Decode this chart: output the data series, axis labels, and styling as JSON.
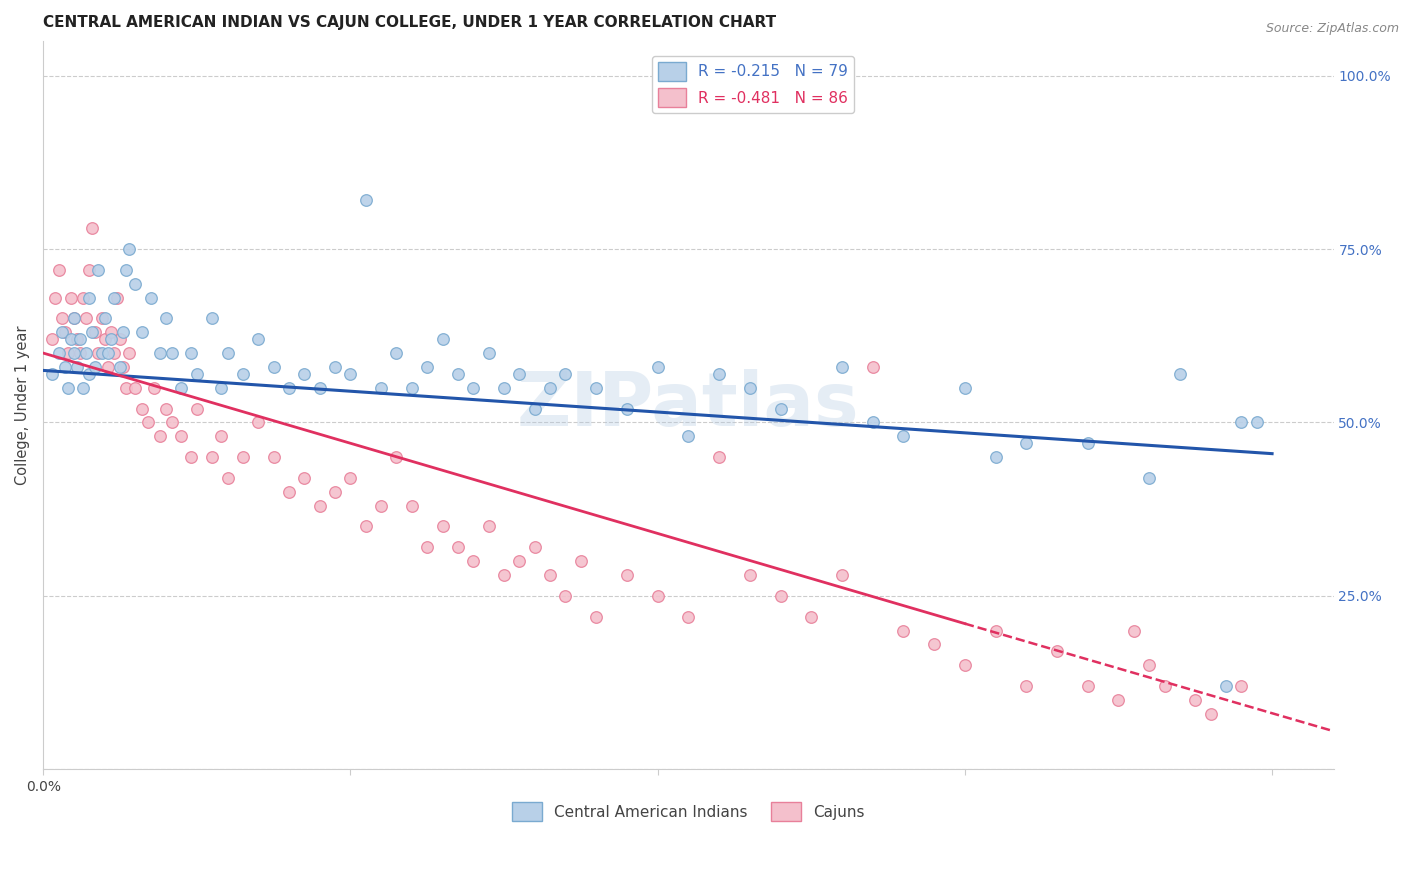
{
  "title": "CENTRAL AMERICAN INDIAN VS CAJUN COLLEGE, UNDER 1 YEAR CORRELATION CHART",
  "source": "Source: ZipAtlas.com",
  "ylabel": "College, Under 1 year",
  "xlim": [
    0.0,
    0.42
  ],
  "ylim": [
    0.0,
    1.05
  ],
  "yticks": [
    0.0,
    0.25,
    0.5,
    0.75,
    1.0
  ],
  "right_yticklabels": [
    "",
    "25.0%",
    "50.0%",
    "75.0%",
    "100.0%"
  ],
  "xtick_vals": [
    0.0,
    0.1,
    0.2,
    0.3,
    0.4
  ],
  "xticklabels_show": {
    "0.0": "0.0%"
  },
  "legend_entries": [
    {
      "label": "R = -0.215   N = 79",
      "facecolor": "#b8d0e8",
      "edgecolor": "#7aaad0"
    },
    {
      "label": "R = -0.481   N = 86",
      "facecolor": "#f4c0cc",
      "edgecolor": "#e8809a"
    }
  ],
  "legend_labels": [
    "Central American Indians",
    "Cajuns"
  ],
  "scatter_blue": {
    "facecolor": "#b8d0e8",
    "edgecolor": "#7aaad0",
    "x": [
      0.003,
      0.005,
      0.006,
      0.007,
      0.008,
      0.009,
      0.01,
      0.01,
      0.011,
      0.012,
      0.013,
      0.014,
      0.015,
      0.015,
      0.016,
      0.017,
      0.018,
      0.019,
      0.02,
      0.021,
      0.022,
      0.023,
      0.025,
      0.026,
      0.027,
      0.028,
      0.03,
      0.032,
      0.035,
      0.038,
      0.04,
      0.042,
      0.045,
      0.048,
      0.05,
      0.055,
      0.058,
      0.06,
      0.065,
      0.07,
      0.075,
      0.08,
      0.085,
      0.09,
      0.095,
      0.1,
      0.105,
      0.11,
      0.115,
      0.12,
      0.125,
      0.13,
      0.135,
      0.14,
      0.145,
      0.15,
      0.155,
      0.16,
      0.165,
      0.17,
      0.18,
      0.19,
      0.2,
      0.21,
      0.22,
      0.23,
      0.24,
      0.26,
      0.27,
      0.28,
      0.3,
      0.31,
      0.32,
      0.34,
      0.36,
      0.37,
      0.385,
      0.39,
      0.395
    ],
    "y": [
      0.57,
      0.6,
      0.63,
      0.58,
      0.55,
      0.62,
      0.6,
      0.65,
      0.58,
      0.62,
      0.55,
      0.6,
      0.68,
      0.57,
      0.63,
      0.58,
      0.72,
      0.6,
      0.65,
      0.6,
      0.62,
      0.68,
      0.58,
      0.63,
      0.72,
      0.75,
      0.7,
      0.63,
      0.68,
      0.6,
      0.65,
      0.6,
      0.55,
      0.6,
      0.57,
      0.65,
      0.55,
      0.6,
      0.57,
      0.62,
      0.58,
      0.55,
      0.57,
      0.55,
      0.58,
      0.57,
      0.82,
      0.55,
      0.6,
      0.55,
      0.58,
      0.62,
      0.57,
      0.55,
      0.6,
      0.55,
      0.57,
      0.52,
      0.55,
      0.57,
      0.55,
      0.52,
      0.58,
      0.48,
      0.57,
      0.55,
      0.52,
      0.58,
      0.5,
      0.48,
      0.55,
      0.45,
      0.47,
      0.47,
      0.42,
      0.57,
      0.12,
      0.5,
      0.5
    ]
  },
  "scatter_pink": {
    "facecolor": "#f4c0cc",
    "edgecolor": "#e8809a",
    "x": [
      0.003,
      0.004,
      0.005,
      0.006,
      0.007,
      0.008,
      0.009,
      0.01,
      0.011,
      0.012,
      0.013,
      0.014,
      0.015,
      0.016,
      0.017,
      0.018,
      0.019,
      0.02,
      0.021,
      0.022,
      0.023,
      0.024,
      0.025,
      0.026,
      0.027,
      0.028,
      0.03,
      0.032,
      0.034,
      0.036,
      0.038,
      0.04,
      0.042,
      0.045,
      0.048,
      0.05,
      0.055,
      0.058,
      0.06,
      0.065,
      0.07,
      0.075,
      0.08,
      0.085,
      0.09,
      0.095,
      0.1,
      0.105,
      0.11,
      0.115,
      0.12,
      0.125,
      0.13,
      0.135,
      0.14,
      0.145,
      0.15,
      0.155,
      0.16,
      0.165,
      0.17,
      0.175,
      0.18,
      0.19,
      0.2,
      0.21,
      0.22,
      0.23,
      0.24,
      0.25,
      0.26,
      0.27,
      0.28,
      0.29,
      0.3,
      0.31,
      0.32,
      0.33,
      0.34,
      0.35,
      0.355,
      0.36,
      0.365,
      0.375,
      0.38,
      0.39
    ],
    "y": [
      0.62,
      0.68,
      0.72,
      0.65,
      0.63,
      0.6,
      0.68,
      0.65,
      0.62,
      0.6,
      0.68,
      0.65,
      0.72,
      0.78,
      0.63,
      0.6,
      0.65,
      0.62,
      0.58,
      0.63,
      0.6,
      0.68,
      0.62,
      0.58,
      0.55,
      0.6,
      0.55,
      0.52,
      0.5,
      0.55,
      0.48,
      0.52,
      0.5,
      0.48,
      0.45,
      0.52,
      0.45,
      0.48,
      0.42,
      0.45,
      0.5,
      0.45,
      0.4,
      0.42,
      0.38,
      0.4,
      0.42,
      0.35,
      0.38,
      0.45,
      0.38,
      0.32,
      0.35,
      0.32,
      0.3,
      0.35,
      0.28,
      0.3,
      0.32,
      0.28,
      0.25,
      0.3,
      0.22,
      0.28,
      0.25,
      0.22,
      0.45,
      0.28,
      0.25,
      0.22,
      0.28,
      0.58,
      0.2,
      0.18,
      0.15,
      0.2,
      0.12,
      0.17,
      0.12,
      0.1,
      0.2,
      0.15,
      0.12,
      0.1,
      0.08,
      0.12
    ]
  },
  "blue_line": {
    "x": [
      0.0,
      0.4
    ],
    "y": [
      0.575,
      0.455
    ],
    "color": "#2255aa",
    "linewidth": 2.2
  },
  "pink_line_solid": {
    "x": [
      0.0,
      0.3
    ],
    "y": [
      0.6,
      0.21
    ],
    "color": "#e03060",
    "linewidth": 2.0
  },
  "pink_line_dashed": {
    "x": [
      0.3,
      0.42
    ],
    "y": [
      0.21,
      0.055
    ],
    "color": "#e03060",
    "linewidth": 1.8,
    "linestyle": "--"
  },
  "watermark": "ZIPatlas",
  "bg_color": "#ffffff",
  "grid_color": "#cccccc",
  "title_fontsize": 11,
  "title_color": "#222222",
  "marker_size": 70
}
